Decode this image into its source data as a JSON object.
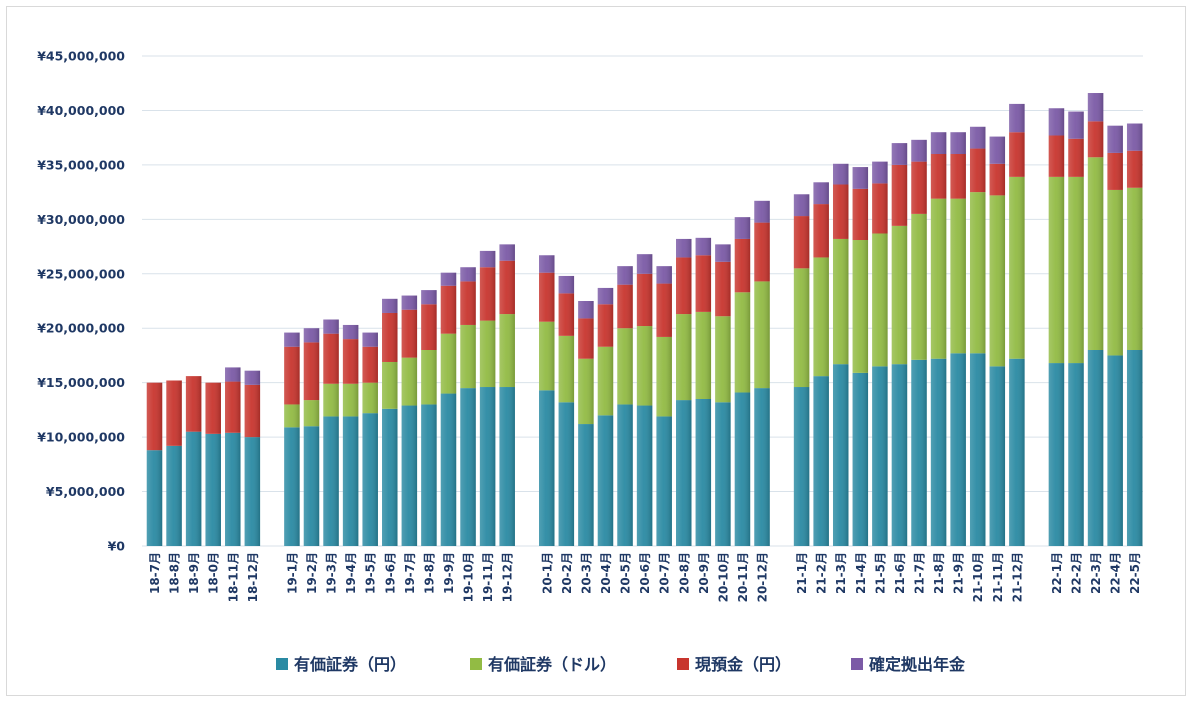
{
  "chart_data": {
    "type": "bar",
    "stacked": true,
    "ylim": [
      0,
      45000000
    ],
    "ytick_labels": [
      "¥0",
      "¥5,000,000",
      "¥10,000,000",
      "¥15,000,000",
      "¥20,000,000",
      "¥25,000,000",
      "¥30,000,000",
      "¥35,000,000",
      "¥40,000,000",
      "¥45,000,000"
    ],
    "ytick_values": [
      0,
      5000000,
      10000000,
      15000000,
      20000000,
      25000000,
      30000000,
      35000000,
      40000000,
      45000000
    ],
    "grid": true,
    "legend_position": "bottom",
    "categories": [
      "18-7月",
      "18-8月",
      "18-9月",
      "18-0月",
      "18-11月",
      "18-12月",
      "19-1月",
      "19-2月",
      "19-3月",
      "19-4月",
      "19-5月",
      "19-6月",
      "19-7月",
      "19-8月",
      "19-9月",
      "19-10月",
      "19-11月",
      "19-12月",
      "20-1月",
      "20-2月",
      "20-3月",
      "20-4月",
      "20-5月",
      "20-6月",
      "20-7月",
      "20-8月",
      "20-9月",
      "20-10月",
      "20-11月",
      "20-12月",
      "21-1月",
      "21-2月",
      "21-3月",
      "21-4月",
      "21-5月",
      "21-6月",
      "21-7月",
      "21-8月",
      "21-9月",
      "21-10月",
      "21-11月",
      "21-12月",
      "22-1月",
      "22-2月",
      "22-3月",
      "22-4月",
      "22-5月"
    ],
    "groups": [
      6,
      12,
      12,
      12,
      5
    ],
    "series": [
      {
        "name": "有価証券（円）",
        "color": "#2a8aa3",
        "values": [
          8800000,
          9200000,
          10500000,
          10300000,
          10400000,
          10000000,
          10900000,
          11000000,
          11900000,
          11900000,
          12200000,
          12600000,
          12900000,
          13000000,
          14000000,
          14500000,
          14600000,
          14600000,
          14300000,
          13200000,
          11200000,
          12000000,
          13000000,
          12900000,
          11900000,
          13400000,
          13500000,
          13200000,
          14100000,
          14500000,
          14600000,
          15600000,
          16700000,
          15900000,
          16500000,
          16700000,
          17100000,
          17200000,
          17700000,
          17700000,
          16500000,
          17200000,
          16800000,
          16800000,
          18000000,
          17500000,
          18000000
        ]
      },
      {
        "name": "有価証券（ドル）",
        "color": "#92bb44",
        "values": [
          0,
          0,
          0,
          0,
          0,
          0,
          2100000,
          2400000,
          3000000,
          3000000,
          2800000,
          4300000,
          4400000,
          5000000,
          5500000,
          5800000,
          6100000,
          6700000,
          6300000,
          6100000,
          6000000,
          6300000,
          7000000,
          7300000,
          7300000,
          7900000,
          8000000,
          7900000,
          9200000,
          9800000,
          10900000,
          10900000,
          11500000,
          12200000,
          12200000,
          12700000,
          13400000,
          14700000,
          14200000,
          14800000,
          15700000,
          16700000,
          17100000,
          17100000,
          17700000,
          15200000,
          14900000
        ]
      },
      {
        "name": "現預金（円）",
        "color": "#c8352e",
        "values": [
          6200000,
          6000000,
          5100000,
          4700000,
          4700000,
          4800000,
          5300000,
          5300000,
          4600000,
          4100000,
          3300000,
          4500000,
          4400000,
          4200000,
          4400000,
          4000000,
          4900000,
          4900000,
          4500000,
          3900000,
          3700000,
          3900000,
          4000000,
          4800000,
          4900000,
          5200000,
          5200000,
          5000000,
          4900000,
          5400000,
          4800000,
          4900000,
          5000000,
          4700000,
          4600000,
          5600000,
          4800000,
          4100000,
          4100000,
          4000000,
          2900000,
          4100000,
          3800000,
          3500000,
          3300000,
          3400000,
          3400000
        ]
      },
      {
        "name": "確定拠出年金",
        "color": "#7b5aa6",
        "values": [
          0,
          0,
          0,
          0,
          1300000,
          1300000,
          1300000,
          1300000,
          1300000,
          1300000,
          1300000,
          1300000,
          1300000,
          1300000,
          1200000,
          1300000,
          1500000,
          1500000,
          1600000,
          1600000,
          1600000,
          1500000,
          1700000,
          1800000,
          1600000,
          1700000,
          1600000,
          1600000,
          2000000,
          2000000,
          2000000,
          2000000,
          1900000,
          2000000,
          2000000,
          2000000,
          2000000,
          2000000,
          2000000,
          2000000,
          2500000,
          2600000,
          2500000,
          2500000,
          2600000,
          2500000,
          2500000
        ]
      }
    ]
  }
}
